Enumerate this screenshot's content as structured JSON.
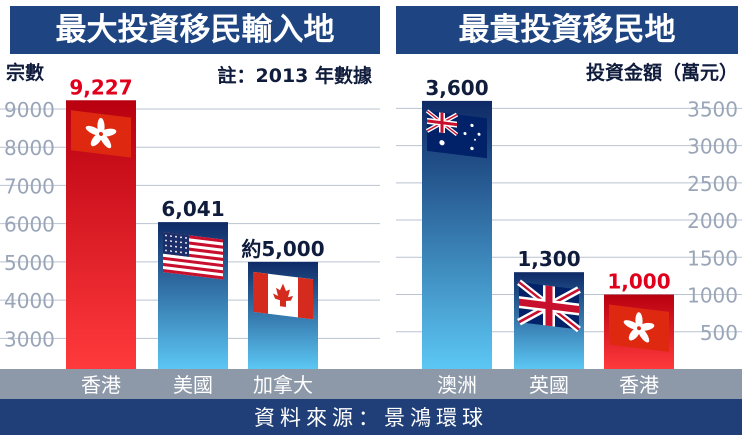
{
  "colors": {
    "banner": "#1e4582",
    "gridline": "#b9c3d1",
    "axis_text": "#9aa6b8",
    "category_band": "#8d98a8",
    "footer_band": "#203f78",
    "label_dark": "#101c3c",
    "label_red": "#e0001b",
    "red_bar_top": "#b80010",
    "red_bar_bottom": "#ff3a3c",
    "blue_bar_top": "#0f2a66",
    "blue_bar_bottom": "#5cc7f4"
  },
  "footer": {
    "source": "資料來源：景鴻環球"
  },
  "chart_data": [
    {
      "type": "bar",
      "title": "最大投資移民輸入地",
      "ylabel": "宗數",
      "annotation": "註：2013 年數據",
      "ylim": [
        2200,
        9600
      ],
      "yticks": [
        9000,
        8000,
        7000,
        6000,
        5000,
        4000,
        3000
      ],
      "categories": [
        "香港",
        "美國",
        "加拿大"
      ],
      "values": [
        9227,
        6041,
        5000
      ],
      "value_labels": [
        "9,227",
        "6,041",
        "約5,000"
      ],
      "flags": [
        "hong-kong-flag",
        "usa-flag",
        "canada-flag"
      ],
      "bar_styles": [
        "red",
        "blue",
        "blue"
      ],
      "label_styles": [
        "red",
        "dark",
        "dark"
      ],
      "grid": true,
      "axis_side": "left"
    },
    {
      "type": "bar",
      "title": "最貴投資移民地",
      "ylabel": "投資金額（萬元）",
      "ylim": [
        0,
        3800
      ],
      "yticks": [
        3500,
        3000,
        2500,
        2000,
        1500,
        1000,
        500
      ],
      "categories": [
        "澳洲",
        "英國",
        "香港"
      ],
      "values": [
        3600,
        1300,
        1000
      ],
      "value_labels": [
        "3,600",
        "1,300",
        "1,000"
      ],
      "flags": [
        "australia-flag",
        "uk-flag",
        "hong-kong-flag"
      ],
      "bar_styles": [
        "blue",
        "blue",
        "red"
      ],
      "label_styles": [
        "dark",
        "dark",
        "red"
      ],
      "grid": true,
      "axis_side": "right"
    }
  ]
}
